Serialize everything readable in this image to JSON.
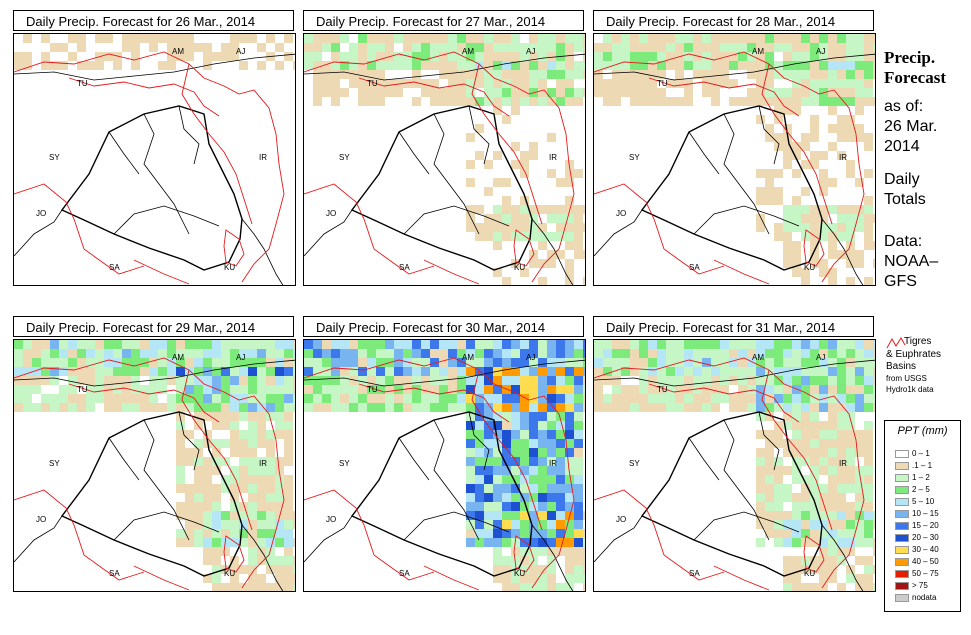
{
  "panels": [
    {
      "title": "Daily Precip. Forecast for  26 Mar., 2014",
      "intensity": 0
    },
    {
      "title": "Daily Precip. Forecast for  27 Mar., 2014",
      "intensity": 1
    },
    {
      "title": "Daily Precip. Forecast for  28 Mar., 2014",
      "intensity": 1
    },
    {
      "title": "Daily Precip. Forecast for  29 Mar., 2014",
      "intensity": 2
    },
    {
      "title": "Daily Precip. Forecast for  30 Mar., 2014",
      "intensity": 3
    },
    {
      "title": "Daily Precip. Forecast for  31 Mar., 2014",
      "intensity": 2
    }
  ],
  "country_labels": [
    "AM",
    "AJ",
    "TU",
    "SY",
    "IR",
    "JO",
    "SA",
    "KU"
  ],
  "sidebar": {
    "title_line1": "Precip.",
    "title_line2": "Forecast",
    "asof_line1": "as of:",
    "asof_line2": "26 Mar.",
    "asof_line3": "2014",
    "totals_line1": "Daily",
    "totals_line2": "Totals",
    "data_line1": "Data:",
    "data_line2": "NOAA–",
    "data_line3": "GFS"
  },
  "basin_legend": {
    "line1": "Tigres",
    "line2": "& Euphrates",
    "line3": "Basins",
    "line4": "from USGS",
    "line5": "Hydro1k data",
    "color": "#e41a1c"
  },
  "legend": {
    "title": "PPT (mm)",
    "classes": [
      {
        "label": "0 – 1",
        "color": "#ffffff"
      },
      {
        "label": ".1 – 1",
        "color": "#eed9b5"
      },
      {
        "label": "1 – 2",
        "color": "#c6f5c6"
      },
      {
        "label": "2 – 5",
        "color": "#7ceb7c"
      },
      {
        "label": "5 – 10",
        "color": "#b4e6f5"
      },
      {
        "label": "10 – 15",
        "color": "#78b4f0"
      },
      {
        "label": "15 – 20",
        "color": "#3c78eb"
      },
      {
        "label": "20 – 30",
        "color": "#1e50d2"
      },
      {
        "label": "30 – 40",
        "color": "#ffdc50"
      },
      {
        "label": "40 – 50",
        "color": "#ff9b00"
      },
      {
        "label": "50 – 75",
        "color": "#e61e00"
      },
      {
        "label": "> 75",
        "color": "#a01414"
      },
      {
        "label": "nodata",
        "color": "#cccccc"
      }
    ]
  }
}
